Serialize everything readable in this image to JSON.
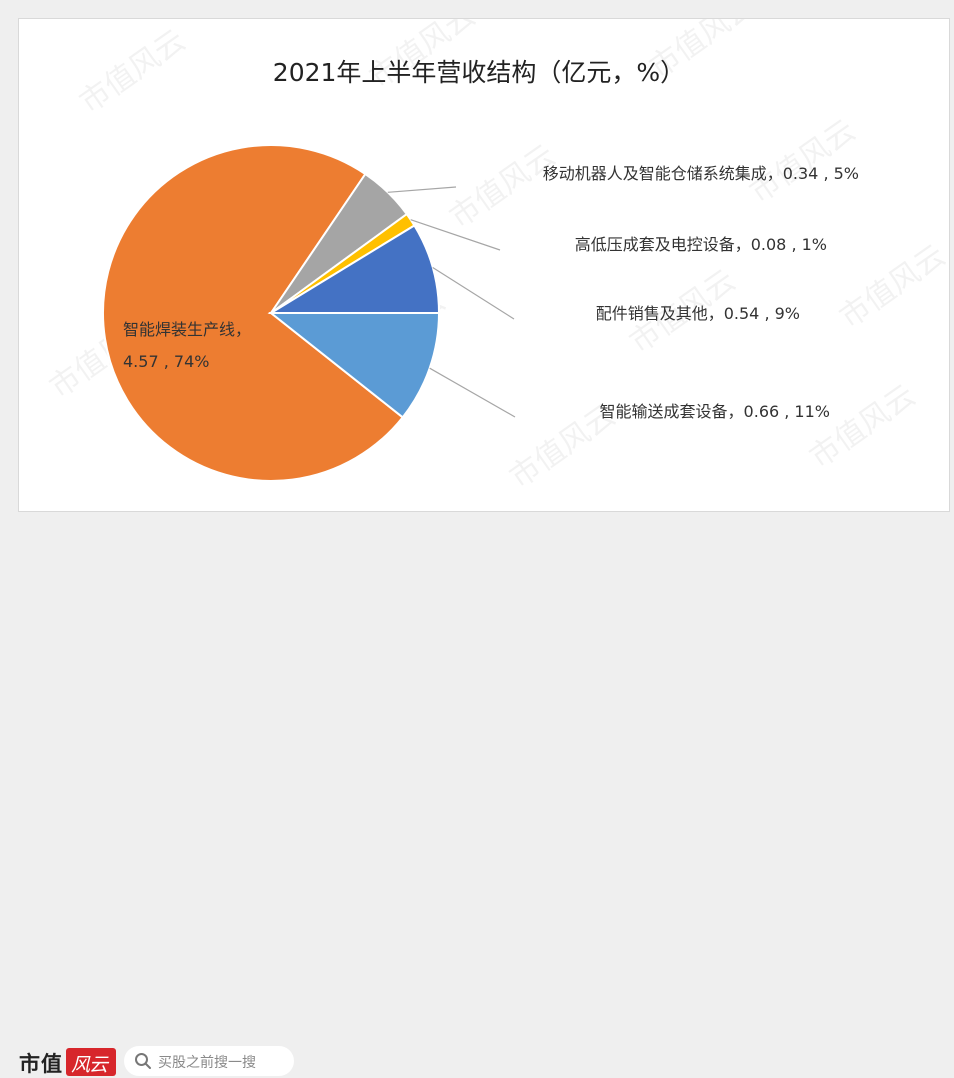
{
  "chart_data": {
    "type": "pie",
    "title": "2021年上半年营收结构（亿元，%）",
    "slices": [
      {
        "name": "智能焊装生产线",
        "value": 4.57,
        "percent": 74,
        "color": "#ed7d31",
        "label": "4.57 , 74%"
      },
      {
        "name": "移动机器人及智能仓储系统集成",
        "value": 0.34,
        "percent": 5,
        "color": "#a5a5a5",
        "label": "0.34 , 5%"
      },
      {
        "name": "高低压成套及电控设备",
        "value": 0.08,
        "percent": 1,
        "color": "#ffc000",
        "label": "0.08 , 1%"
      },
      {
        "name": "配件销售及其他",
        "value": 0.54,
        "percent": 9,
        "color": "#4472c4",
        "label": "0.54 , 9%"
      },
      {
        "name": "智能输送成套设备",
        "value": 0.66,
        "percent": 11,
        "color": "#5b9bd5",
        "label": "0.66 , 11%"
      }
    ]
  },
  "watermark": "市值风云",
  "footer": {
    "brand": "市值",
    "brand_badge": "风云",
    "search_placeholder": "买股之前搜一搜"
  }
}
